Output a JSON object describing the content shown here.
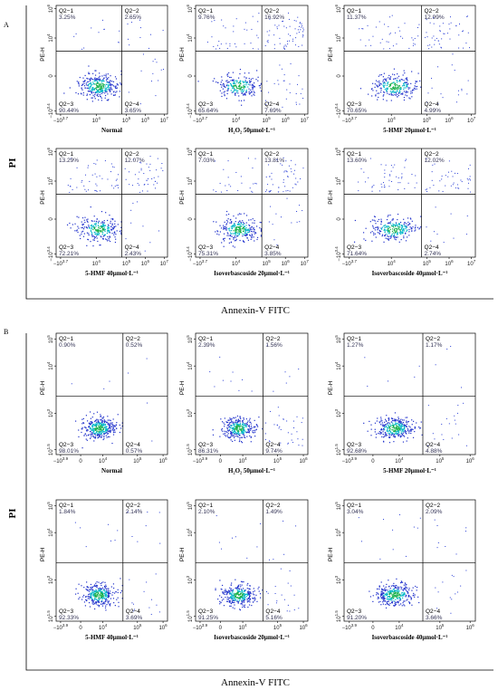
{
  "figure": {
    "yaxis_label": "PI",
    "xaxis_label": "Annexin-V FITC",
    "ylabel_panel": "PE-H"
  },
  "chart_data": [
    {
      "type": "scatter",
      "panel_label": "A",
      "ylabel": "PI",
      "xlabel": "Annexin-V FITC",
      "panel_ylabel": "PE-H",
      "x_ticks": [
        "−10^3.7",
        "10^4",
        "10^5",
        "10^6",
        "10^7"
      ],
      "y_ticks": [
        "10^6",
        "10^4",
        "0",
        "−10^3.4"
      ],
      "quadrant_names": [
        "Q2−1",
        "Q2−2",
        "Q2−3",
        "Q2−4"
      ],
      "gate_x": 0.59,
      "gate_y": 0.42,
      "subplots": [
        {
          "title": "Normal",
          "q1": "3.25%",
          "q2": "2.65%",
          "q3": "90.44%",
          "q4": "3.65%"
        },
        {
          "title": "H₂O₂ 50μmol·L⁻¹",
          "q1": "9.76%",
          "q2": "16.92%",
          "q3": "65.64%",
          "q4": "7.69%"
        },
        {
          "title": "5-HMF 20μmol·L⁻¹",
          "q1": "11.37%",
          "q2": "12.99%",
          "q3": "70.65%",
          "q4": "4.99%"
        },
        {
          "title": "5-HMF 40μmol·L⁻¹",
          "q1": "13.29%",
          "q2": "12.07%",
          "q3": "72.21%",
          "q4": "2.43%"
        },
        {
          "title": "Isoverbascoside 20μmol·L⁻¹",
          "q1": "7.03%",
          "q2": "13.81%",
          "q3": "75.31%",
          "q4": "3.85%"
        },
        {
          "title": "Isoverbascoside 40μmol·L⁻¹",
          "q1": "13.60%",
          "q2": "12.02%",
          "q3": "71.64%",
          "q4": "2.74%"
        }
      ]
    },
    {
      "type": "scatter",
      "panel_label": "B",
      "ylabel": "PI",
      "xlabel": "Annexin-V FITC",
      "panel_ylabel": "PE-H",
      "x_ticks": [
        "−10^3.9",
        "0",
        "10^4",
        "10^5",
        "10^6"
      ],
      "y_ticks": [
        "10^5",
        "10^4",
        "10^3",
        "10^1.5"
      ],
      "quadrant_names": [
        "Q2−1",
        "Q2−2",
        "Q2−3",
        "Q2−4"
      ],
      "gate_x": 0.6,
      "gate_y": 0.52,
      "subplots": [
        {
          "title": "Normal",
          "q1": "0.90%",
          "q2": "0.52%",
          "q3": "98.01%",
          "q4": "0.57%"
        },
        {
          "title": "H₂O₂ 50μmol·L⁻¹",
          "q1": "2.39%",
          "q2": "1.56%",
          "q3": "86.31%",
          "q4": "9.74%"
        },
        {
          "title": "5-HMF 20μmol·L⁻¹",
          "q1": "1.27%",
          "q2": "1.17%",
          "q3": "92.68%",
          "q4": "4.88%"
        },
        {
          "title": "5-HMF 40μmol·L⁻¹",
          "q1": "1.84%",
          "q2": "2.14%",
          "q3": "92.33%",
          "q4": "3.69%"
        },
        {
          "title": "Isoverbascoside 20μmol·L⁻¹",
          "q1": "2.10%",
          "q2": "1.49%",
          "q3": "91.25%",
          "q4": "5.16%"
        },
        {
          "title": "Isoverbascoside 40μmol·L⁻¹",
          "q1": "3.04%",
          "q2": "2.09%",
          "q3": "91.20%",
          "q4": "3.66%"
        }
      ]
    }
  ]
}
